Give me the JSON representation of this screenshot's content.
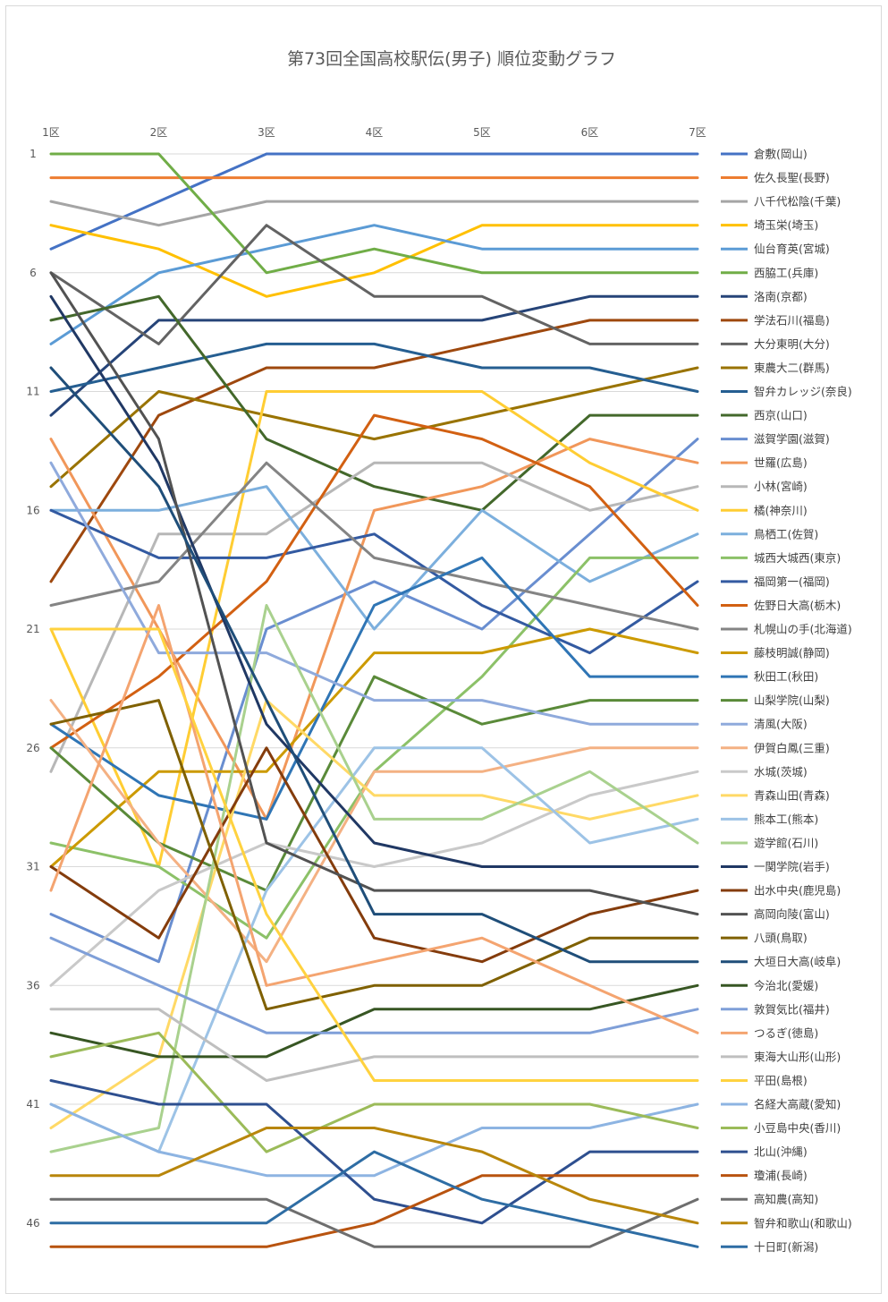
{
  "chart_data": {
    "type": "line",
    "title": "第73回全国高校駅伝(男子) 順位変動グラフ",
    "x": [
      "1区",
      "2区",
      "3区",
      "4区",
      "5区",
      "6区",
      "7区"
    ],
    "y_ticks": [
      1,
      6,
      11,
      16,
      21,
      26,
      31,
      36,
      41,
      46
    ],
    "ylim": [
      1,
      47
    ],
    "y_reversed": true,
    "grid": true,
    "legend_position": "right",
    "series": [
      {
        "name": "倉敷(岡山)",
        "color": "#4472C4",
        "values": [
          5,
          3,
          1,
          1,
          1,
          1,
          1
        ]
      },
      {
        "name": "佐久長聖(長野)",
        "color": "#ED7D31",
        "values": [
          2,
          2,
          2,
          2,
          2,
          2,
          2
        ]
      },
      {
        "name": "八千代松陰(千葉)",
        "color": "#A5A5A5",
        "values": [
          3,
          4,
          3,
          3,
          3,
          3,
          3
        ]
      },
      {
        "name": "埼玉栄(埼玉)",
        "color": "#FFC000",
        "values": [
          4,
          5,
          7,
          6,
          4,
          4,
          4
        ]
      },
      {
        "name": "仙台育英(宮城)",
        "color": "#5B9BD5",
        "values": [
          9,
          6,
          5,
          4,
          5,
          5,
          5
        ]
      },
      {
        "name": "西脇工(兵庫)",
        "color": "#70AD47",
        "values": [
          1,
          1,
          6,
          5,
          6,
          6,
          6
        ]
      },
      {
        "name": "洛南(京都)",
        "color": "#264478",
        "values": [
          12,
          8,
          8,
          8,
          8,
          7,
          7
        ]
      },
      {
        "name": "学法石川(福島)",
        "color": "#9E480E",
        "values": [
          19,
          12,
          10,
          10,
          9,
          8,
          8
        ]
      },
      {
        "name": "大分東明(大分)",
        "color": "#636363",
        "values": [
          6,
          9,
          4,
          7,
          7,
          9,
          9
        ]
      },
      {
        "name": "東農大二(群馬)",
        "color": "#997300",
        "values": [
          15,
          11,
          12,
          13,
          12,
          11,
          10
        ]
      },
      {
        "name": "智弁カレッジ(奈良)",
        "color": "#255E91",
        "values": [
          11,
          10,
          9,
          9,
          10,
          10,
          11
        ]
      },
      {
        "name": "西京(山口)",
        "color": "#43682B",
        "values": [
          8,
          7,
          13,
          15,
          16,
          12,
          12
        ]
      },
      {
        "name": "滋賀学園(滋賀)",
        "color": "#698ED0",
        "values": [
          33,
          35,
          21,
          19,
          21,
          17,
          13
        ]
      },
      {
        "name": "世羅(広島)",
        "color": "#F1975A",
        "values": [
          13,
          21,
          29,
          16,
          15,
          13,
          14
        ]
      },
      {
        "name": "小林(宮崎)",
        "color": "#B7B7B7",
        "values": [
          27,
          17,
          17,
          14,
          14,
          16,
          15
        ]
      },
      {
        "name": "橘(神奈川)",
        "color": "#FFCD33",
        "values": [
          21,
          31,
          11,
          11,
          11,
          14,
          16
        ]
      },
      {
        "name": "鳥栖工(佐賀)",
        "color": "#7CAFDD",
        "values": [
          16,
          16,
          15,
          21,
          16,
          19,
          17
        ]
      },
      {
        "name": "城西大城西(東京)",
        "color": "#8CC168",
        "values": [
          30,
          31,
          34,
          27,
          23,
          18,
          18
        ]
      },
      {
        "name": "福岡第一(福岡)",
        "color": "#335AA1",
        "values": [
          16,
          18,
          18,
          17,
          20,
          22,
          19
        ]
      },
      {
        "name": "佐野日大高(栃木)",
        "color": "#D26012",
        "values": [
          26,
          23,
          19,
          12,
          13,
          15,
          20
        ]
      },
      {
        "name": "札幌山の手(北海道)",
        "color": "#848484",
        "values": [
          20,
          19,
          14,
          18,
          19,
          20,
          21
        ]
      },
      {
        "name": "藤枝明誠(静岡)",
        "color": "#CC9A00",
        "values": [
          31,
          27,
          27,
          22,
          22,
          21,
          22
        ]
      },
      {
        "name": "秋田工(秋田)",
        "color": "#2F75B5",
        "values": [
          25,
          28,
          29,
          20,
          18,
          23,
          23
        ]
      },
      {
        "name": "山梨学院(山梨)",
        "color": "#5A8A39",
        "values": [
          26,
          30,
          32,
          23,
          25,
          24,
          24
        ]
      },
      {
        "name": "清風(大阪)",
        "color": "#8FAADC",
        "values": [
          14,
          22,
          22,
          24,
          24,
          25,
          25
        ]
      },
      {
        "name": "伊賀白鳳(三重)",
        "color": "#F4B183",
        "values": [
          24,
          30,
          35,
          27,
          27,
          26,
          26
        ]
      },
      {
        "name": "水城(茨城)",
        "color": "#C9C9C9",
        "values": [
          36,
          32,
          30,
          31,
          30,
          28,
          27
        ]
      },
      {
        "name": "青森山田(青森)",
        "color": "#FFD966",
        "values": [
          42,
          39,
          24,
          28,
          28,
          29,
          28
        ]
      },
      {
        "name": "熊本工(熊本)",
        "color": "#9DC3E6",
        "values": [
          41,
          43,
          32,
          26,
          26,
          30,
          29
        ]
      },
      {
        "name": "遊学館(石川)",
        "color": "#A9D18E",
        "values": [
          43,
          42,
          20,
          29,
          29,
          27,
          30
        ]
      },
      {
        "name": "一関学院(岩手)",
        "color": "#203864",
        "values": [
          7,
          14,
          25,
          30,
          31,
          31,
          31
        ]
      },
      {
        "name": "出水中央(鹿児島)",
        "color": "#843C0C",
        "values": [
          31,
          34,
          26,
          34,
          35,
          33,
          32
        ]
      },
      {
        "name": "高岡向陵(富山)",
        "color": "#525252",
        "values": [
          6,
          13,
          30,
          32,
          32,
          32,
          33
        ]
      },
      {
        "name": "八頭(鳥取)",
        "color": "#7F6000",
        "values": [
          25,
          24,
          37,
          36,
          36,
          34,
          34
        ]
      },
      {
        "name": "大垣日大高(岐阜)",
        "color": "#1F4E79",
        "values": [
          10,
          15,
          24,
          33,
          33,
          35,
          35
        ]
      },
      {
        "name": "今治北(愛媛)",
        "color": "#375623",
        "values": [
          38,
          39,
          39,
          37,
          37,
          37,
          36
        ]
      },
      {
        "name": "敦賀気比(福井)",
        "color": "#7F9FD8",
        "values": [
          34,
          36,
          38,
          38,
          38,
          38,
          37
        ]
      },
      {
        "name": "つるぎ(徳島)",
        "color": "#F4A470",
        "values": [
          32,
          20,
          36,
          35,
          34,
          36,
          38
        ]
      },
      {
        "name": "東海大山形(山形)",
        "color": "#BFBFBF",
        "values": [
          37,
          37,
          40,
          39,
          39,
          39,
          39
        ]
      },
      {
        "name": "平田(島根)",
        "color": "#FFD23F",
        "values": [
          21,
          21,
          33,
          40,
          40,
          40,
          40
        ]
      },
      {
        "name": "名経大高蔵(愛知)",
        "color": "#8DB4E2",
        "values": [
          41,
          43,
          44,
          44,
          42,
          42,
          41
        ]
      },
      {
        "name": "小豆島中央(香川)",
        "color": "#9BBB59",
        "values": [
          39,
          38,
          43,
          41,
          41,
          41,
          42
        ]
      },
      {
        "name": "北山(沖縄)",
        "color": "#2E4F8F",
        "values": [
          40,
          41,
          41,
          45,
          46,
          43,
          43
        ]
      },
      {
        "name": "瓊浦(長崎)",
        "color": "#B8530F",
        "values": [
          47,
          47,
          47,
          46,
          44,
          44,
          44
        ]
      },
      {
        "name": "高知農(高知)",
        "color": "#6E6E6E",
        "values": [
          45,
          45,
          45,
          47,
          47,
          47,
          45
        ]
      },
      {
        "name": "智弁和歌山(和歌山)",
        "color": "#B8860B",
        "values": [
          44,
          44,
          42,
          42,
          43,
          45,
          46
        ]
      },
      {
        "name": "十日町(新潟)",
        "color": "#2E6DA4",
        "values": [
          46,
          46,
          46,
          43,
          45,
          46,
          47
        ]
      }
    ]
  }
}
